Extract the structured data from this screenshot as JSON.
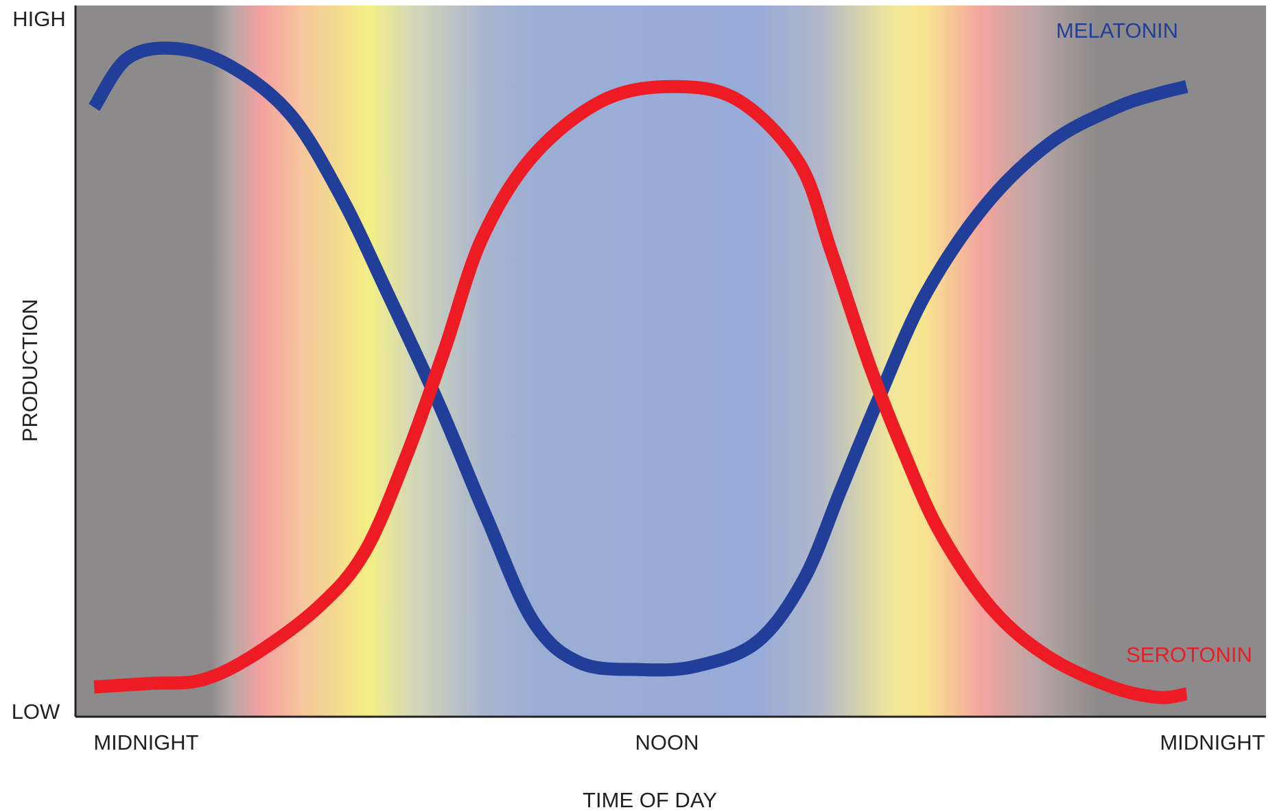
{
  "chart_data": {
    "type": "line",
    "title": "",
    "xlabel": "TIME OF DAY",
    "ylabel": "PRODUCTION",
    "x_tick_labels": [
      {
        "x": 0,
        "label": "MIDNIGHT"
      },
      {
        "x": 12,
        "label": "NOON"
      },
      {
        "x": 24,
        "label": "MIDNIGHT"
      }
    ],
    "y_tick_labels": [
      {
        "y": 1,
        "label": "HIGH"
      },
      {
        "y": 0,
        "label": "LOW"
      }
    ],
    "xlim": [
      -0.2,
      25.3
    ],
    "ylim": [
      0,
      1
    ],
    "grid": false,
    "legend": "inline labels at right end of each curve",
    "background_bands": {
      "description": "time-of-day colour gradient",
      "stops": [
        {
          "x": 2.7,
          "color": "#8c8a8a"
        },
        {
          "x": 3.1,
          "color": "#b3a6a6"
        },
        {
          "x": 3.8,
          "color": "#f4a2a0"
        },
        {
          "x": 4.7,
          "color": "#f5c79c"
        },
        {
          "x": 6.1,
          "color": "#f3ef84"
        },
        {
          "x": 7.0,
          "color": "#d4d8b7"
        },
        {
          "x": 8.5,
          "color": "#aab6cd"
        },
        {
          "x": 9.6,
          "color": "#9aaed4"
        },
        {
          "x": 14.4,
          "color": "#97abd8"
        },
        {
          "x": 15.8,
          "color": "#b3b8c8"
        },
        {
          "x": 17.3,
          "color": "#f1e79a"
        },
        {
          "x": 18.0,
          "color": "#f8e48f"
        },
        {
          "x": 19.2,
          "color": "#f3a59e"
        },
        {
          "x": 20.4,
          "color": "#b9a5a5"
        },
        {
          "x": 21.7,
          "color": "#8c8a8a"
        }
      ]
    },
    "series": [
      {
        "name": "MELATONIN",
        "color": "#213e99",
        "points": [
          [
            0.2,
            0.87
          ],
          [
            0.9,
            0.94
          ],
          [
            1.9,
            0.955
          ],
          [
            3.1,
            0.93
          ],
          [
            4.4,
            0.86
          ],
          [
            5.5,
            0.74
          ],
          [
            6.5,
            0.6
          ],
          [
            7.6,
            0.44
          ],
          [
            8.6,
            0.28
          ],
          [
            9.6,
            0.13
          ],
          [
            10.6,
            0.07
          ],
          [
            11.9,
            0.06
          ],
          [
            13.1,
            0.065
          ],
          [
            14.4,
            0.1
          ],
          [
            15.4,
            0.19
          ],
          [
            16.2,
            0.32
          ],
          [
            17.0,
            0.45
          ],
          [
            18.0,
            0.6
          ],
          [
            19.3,
            0.73
          ],
          [
            20.7,
            0.82
          ],
          [
            22.1,
            0.87
          ],
          [
            23.0,
            0.89
          ],
          [
            23.6,
            0.9
          ]
        ]
      },
      {
        "name": "SEROTONIN",
        "color": "#ed1c24",
        "points": [
          [
            0.2,
            0.035
          ],
          [
            1.4,
            0.04
          ],
          [
            2.5,
            0.045
          ],
          [
            3.6,
            0.08
          ],
          [
            5.0,
            0.15
          ],
          [
            6.0,
            0.23
          ],
          [
            6.9,
            0.37
          ],
          [
            7.7,
            0.52
          ],
          [
            8.5,
            0.68
          ],
          [
            9.6,
            0.8
          ],
          [
            11.1,
            0.88
          ],
          [
            12.6,
            0.9
          ],
          [
            14.0,
            0.88
          ],
          [
            15.3,
            0.79
          ],
          [
            16.0,
            0.66
          ],
          [
            16.8,
            0.5
          ],
          [
            17.5,
            0.38
          ],
          [
            18.3,
            0.26
          ],
          [
            19.4,
            0.15
          ],
          [
            20.6,
            0.08
          ],
          [
            22.0,
            0.035
          ],
          [
            23.0,
            0.02
          ],
          [
            23.6,
            0.025
          ]
        ]
      }
    ]
  },
  "colors": {
    "axis": "#231f20",
    "melatonin": "#213e99",
    "serotonin": "#ed1c24"
  }
}
